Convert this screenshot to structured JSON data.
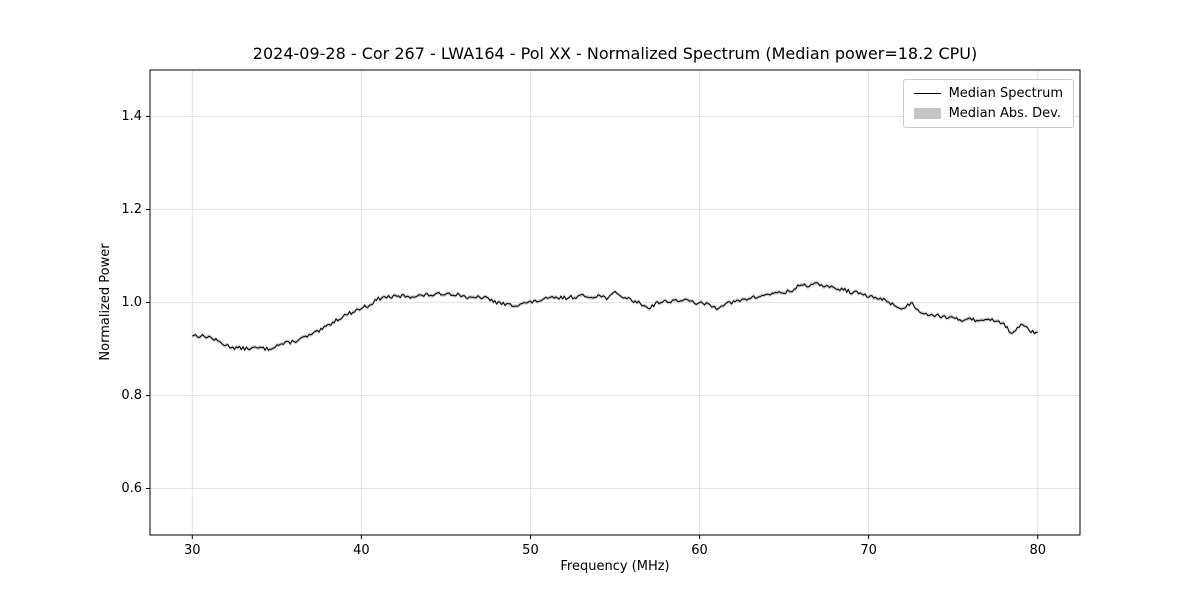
{
  "figure": {
    "background": "#ffffff",
    "spine_color": "#000000",
    "grid_color": "#dddddd"
  },
  "chart_data": {
    "type": "line",
    "title": "2024-09-28 - Cor 267 - LWA164 - Pol XX - Normalized Spectrum (Median power=18.2 CPU)",
    "xlabel": "Frequency (MHz)",
    "ylabel": "Normalized Power",
    "xlim": [
      27.5,
      82.5
    ],
    "ylim": [
      0.5,
      1.5
    ],
    "xticks": [
      30,
      40,
      50,
      60,
      70,
      80
    ],
    "yticks": [
      0.6,
      0.8,
      1.0,
      1.2,
      1.4
    ],
    "grid": true,
    "legend": {
      "position": "upper right",
      "entries": [
        {
          "label": "Median Spectrum",
          "type": "line",
          "color": "#000000"
        },
        {
          "label": "Median Abs. Dev.",
          "type": "patch",
          "color": "#c6c6c6"
        }
      ]
    },
    "series": [
      {
        "name": "Median Spectrum",
        "color": "#000000",
        "anchors_x": [
          30,
          31,
          32,
          32.5,
          33,
          34,
          34.5,
          35,
          36,
          37,
          37.5,
          38,
          38.5,
          39,
          39.5,
          40,
          40.5,
          41,
          41.5,
          42,
          42.5,
          43,
          43.5,
          44,
          44.5,
          45,
          45.5,
          46,
          46.5,
          47,
          47.5,
          48,
          48.5,
          49,
          49.5,
          50,
          50.5,
          51,
          51.5,
          52,
          52.5,
          53,
          53.5,
          54,
          54.5,
          55,
          55.5,
          56,
          56.5,
          57,
          57.5,
          58,
          58.5,
          59,
          59.5,
          60,
          60.5,
          61,
          61.5,
          62,
          62.5,
          63,
          63.5,
          64,
          64.5,
          65,
          65.5,
          66,
          66.5,
          67,
          67.5,
          68,
          68.5,
          69,
          69.5,
          70,
          70.5,
          71,
          71.5,
          72,
          72.5,
          73,
          73.5,
          74,
          74.5,
          75,
          75.5,
          76,
          76.5,
          77,
          77.5,
          78,
          78.5,
          79,
          79.5,
          80
        ],
        "anchors_y": [
          0.93,
          0.926,
          0.908,
          0.903,
          0.901,
          0.902,
          0.9,
          0.908,
          0.916,
          0.93,
          0.938,
          0.95,
          0.962,
          0.972,
          0.98,
          0.988,
          0.995,
          1.008,
          1.012,
          1.012,
          1.014,
          1.013,
          1.015,
          1.016,
          1.017,
          1.02,
          1.018,
          1.015,
          1.008,
          1.012,
          1.008,
          1.0,
          0.996,
          0.994,
          0.998,
          1.0,
          1.004,
          1.008,
          1.01,
          1.01,
          1.012,
          1.014,
          1.012,
          1.015,
          1.01,
          1.02,
          1.012,
          1.005,
          0.998,
          0.988,
          1.0,
          1.002,
          1.004,
          1.005,
          1.002,
          0.998,
          0.996,
          0.988,
          0.998,
          1.0,
          1.005,
          1.01,
          1.012,
          1.018,
          1.02,
          1.022,
          1.025,
          1.04,
          1.035,
          1.04,
          1.035,
          1.03,
          1.028,
          1.022,
          1.02,
          1.012,
          1.01,
          1.005,
          0.995,
          0.985,
          1.0,
          0.982,
          0.975,
          0.972,
          0.97,
          0.965,
          0.962,
          0.968,
          0.958,
          0.965,
          0.962,
          0.955,
          0.93,
          0.955,
          0.94,
          0.932
        ],
        "noise_amplitude": 0.004,
        "noise_seed": 13,
        "points_per_mhz": 10
      },
      {
        "name": "Median Abs. Dev.",
        "type": "band",
        "color": "#c9c9c9",
        "halfwidth": 0.004
      }
    ]
  }
}
